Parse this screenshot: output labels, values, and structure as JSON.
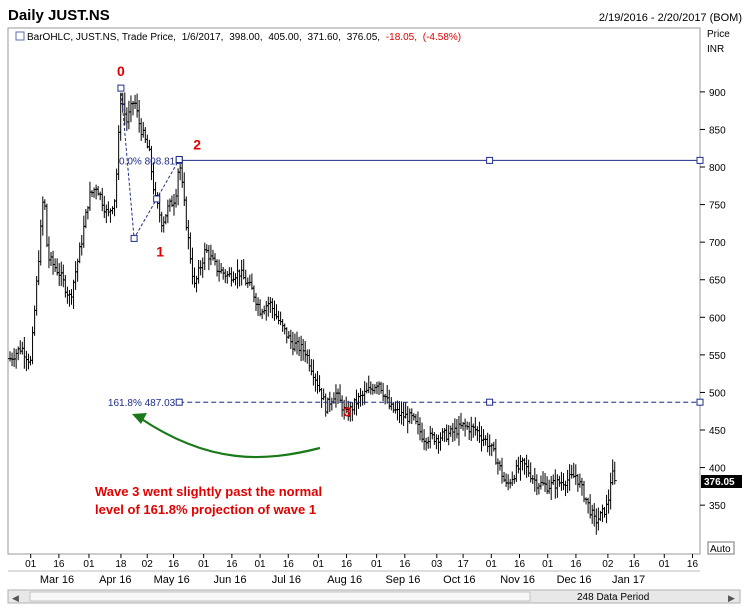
{
  "header": {
    "title": "Daily JUST.NS",
    "date_range": "2/19/2016 - 2/20/2017 (BOM)"
  },
  "legend": {
    "series_label": "BarOHLC, JUST.NS, Trade Price,",
    "date": "1/6/2017,",
    "open": "398.00,",
    "high": "405.00,",
    "low": "371.60,",
    "close": "376.05,",
    "change": "-18.05,",
    "change_pct": "(-4.58%)",
    "change_color": "#e00000"
  },
  "axis": {
    "price_label": "Price",
    "currency_label": "INR",
    "auto_label": "Auto",
    "last_price": "376.05"
  },
  "footer": {
    "data_period": "248 Data Period"
  },
  "colors": {
    "bars": "#000000",
    "fib_lines": "#1f2d8a",
    "wave_labels": "#e00000",
    "arrow": "#1a7a1a",
    "annotation": "#e00000"
  },
  "chart_data": {
    "type": "bar",
    "style": "OHLC",
    "ylim": [
      285,
      985
    ],
    "y_ticks": [
      350,
      400,
      450,
      500,
      550,
      600,
      650,
      700,
      750,
      800,
      850,
      900
    ],
    "x_day_ticks": [
      "01",
      "16",
      "01",
      "18",
      "02",
      "16",
      "01",
      "16",
      "01",
      "16",
      "01",
      "16",
      "01",
      "16",
      "03",
      "17",
      "01",
      "16",
      "01",
      "16",
      "02",
      "16",
      "01",
      "16"
    ],
    "x_months": [
      "Mar 16",
      "Apr 16",
      "May 16",
      "Jun 16",
      "Jul 16",
      "Aug 16",
      "Sep 16",
      "Oct 16",
      "Nov 16",
      "Dec 16",
      "Jan 17"
    ],
    "price_path": [
      {
        "x": "2016-02-19",
        "y": 545
      },
      {
        "x": "2016-02-25",
        "y": 560
      },
      {
        "x": "2016-03-01",
        "y": 540
      },
      {
        "x": "2016-03-08",
        "y": 770
      },
      {
        "x": "2016-03-10",
        "y": 680
      },
      {
        "x": "2016-03-16",
        "y": 660
      },
      {
        "x": "2016-03-22",
        "y": 625
      },
      {
        "x": "2016-03-28",
        "y": 700
      },
      {
        "x": "2016-04-01",
        "y": 760
      },
      {
        "x": "2016-04-05",
        "y": 775
      },
      {
        "x": "2016-04-11",
        "y": 735
      },
      {
        "x": "2016-04-15",
        "y": 760
      },
      {
        "x": "2016-04-18",
        "y": 895
      },
      {
        "x": "2016-04-21",
        "y": 860
      },
      {
        "x": "2016-04-25",
        "y": 890
      },
      {
        "x": "2016-04-28",
        "y": 855
      },
      {
        "x": "2016-05-03",
        "y": 820
      },
      {
        "x": "2016-05-06",
        "y": 760
      },
      {
        "x": "2016-05-10",
        "y": 725
      },
      {
        "x": "2016-05-13",
        "y": 745
      },
      {
        "x": "2016-05-17",
        "y": 760
      },
      {
        "x": "2016-05-19",
        "y": 810
      },
      {
        "x": "2016-05-23",
        "y": 720
      },
      {
        "x": "2016-05-27",
        "y": 640
      },
      {
        "x": "2016-06-02",
        "y": 690
      },
      {
        "x": "2016-06-08",
        "y": 665
      },
      {
        "x": "2016-06-14",
        "y": 655
      },
      {
        "x": "2016-06-20",
        "y": 660
      },
      {
        "x": "2016-06-27",
        "y": 635
      },
      {
        "x": "2016-07-01",
        "y": 610
      },
      {
        "x": "2016-07-06",
        "y": 620
      },
      {
        "x": "2016-07-12",
        "y": 590
      },
      {
        "x": "2016-07-18",
        "y": 565
      },
      {
        "x": "2016-07-25",
        "y": 555
      },
      {
        "x": "2016-08-01",
        "y": 510
      },
      {
        "x": "2016-08-05",
        "y": 480
      },
      {
        "x": "2016-08-10",
        "y": 500
      },
      {
        "x": "2016-08-16",
        "y": 470
      },
      {
        "x": "2016-08-22",
        "y": 490
      },
      {
        "x": "2016-08-29",
        "y": 505
      },
      {
        "x": "2016-09-02",
        "y": 515
      },
      {
        "x": "2016-09-08",
        "y": 480
      },
      {
        "x": "2016-09-14",
        "y": 470
      },
      {
        "x": "2016-09-20",
        "y": 465
      },
      {
        "x": "2016-09-26",
        "y": 440
      },
      {
        "x": "2016-10-03",
        "y": 440
      },
      {
        "x": "2016-10-10",
        "y": 445
      },
      {
        "x": "2016-10-17",
        "y": 455
      },
      {
        "x": "2016-10-24",
        "y": 450
      },
      {
        "x": "2016-10-31",
        "y": 430
      },
      {
        "x": "2016-11-04",
        "y": 410
      },
      {
        "x": "2016-11-09",
        "y": 375
      },
      {
        "x": "2016-11-14",
        "y": 395
      },
      {
        "x": "2016-11-18",
        "y": 405
      },
      {
        "x": "2016-11-25",
        "y": 380
      },
      {
        "x": "2016-12-01",
        "y": 375
      },
      {
        "x": "2016-12-07",
        "y": 380
      },
      {
        "x": "2016-12-13",
        "y": 385
      },
      {
        "x": "2016-12-16",
        "y": 390
      },
      {
        "x": "2016-12-21",
        "y": 360
      },
      {
        "x": "2016-12-26",
        "y": 328
      },
      {
        "x": "2016-12-29",
        "y": 335
      },
      {
        "x": "2017-01-02",
        "y": 350
      },
      {
        "x": "2017-01-04",
        "y": 395
      },
      {
        "x": "2017-01-06",
        "y": 376
      }
    ],
    "fib_levels": [
      {
        "label": "0.0%",
        "value_label": "808.81",
        "value": 808.81,
        "style": "solid"
      },
      {
        "label": "161.8%",
        "value_label": "487.03",
        "value": 487.03,
        "style": "dashed"
      }
    ],
    "wave_points": [
      {
        "x": "2016-04-18",
        "y": 905,
        "label": "0"
      },
      {
        "x": "2016-04-25",
        "y": 705,
        "label": "1"
      },
      {
        "x": "2016-05-19",
        "y": 810,
        "label": "2"
      },
      {
        "x": "2016-08-10",
        "y": 455,
        "label": "3"
      }
    ],
    "annotations": [
      "Wave 3 went slightly past the normal",
      "level of 161.8% projection of wave 1"
    ]
  }
}
